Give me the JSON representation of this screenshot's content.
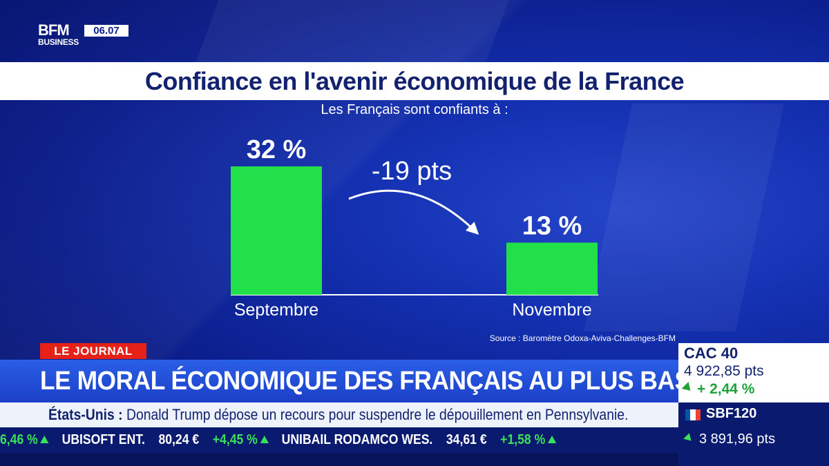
{
  "logo": {
    "brand": "BFM",
    "sub": "BUSINESS",
    "time": "06.07"
  },
  "chart_data": {
    "type": "bar",
    "title": "Confiance en l'avenir économique de la France",
    "subtitle": "Les Français sont confiants à :",
    "categories": [
      "Septembre",
      "Novembre"
    ],
    "values": [
      32,
      13
    ],
    "value_labels": [
      "32 %",
      "13 %"
    ],
    "annotation": "-19 pts",
    "ylim": [
      0,
      32
    ],
    "source": "Source : Baromètre Odoxa-Aviva-Challenges-BFM",
    "bar_color": "#22e04a"
  },
  "lower_third": {
    "tag": "LE JOURNAL",
    "headline": "LE MORAL ÉCONOMIQUE DES FRANÇAIS AU PLUS BAS",
    "news_lead": "États-Unis :",
    "news_text": " Donald Trump dépose un recours pour suspendre le dépouillement en Pennsylvanie."
  },
  "ticker": [
    {
      "change": "6,46 %"
    },
    {
      "name": "UBISOFT ENT.",
      "price": "80,24 €",
      "change": "+4,45 %"
    },
    {
      "name": "UNIBAIL RODAMCO WES.",
      "price": "34,61 €",
      "change": "+1,58 %"
    }
  ],
  "markets": {
    "main": {
      "name": "CAC 40",
      "value": "4 922,85 pts",
      "change": "+ 2,44 %"
    },
    "second": {
      "name": "SBF120",
      "value": "3 891,96 pts"
    }
  },
  "colors": {
    "accent_red": "#e62117",
    "navy": "#13226e",
    "green": "#22e04a"
  }
}
